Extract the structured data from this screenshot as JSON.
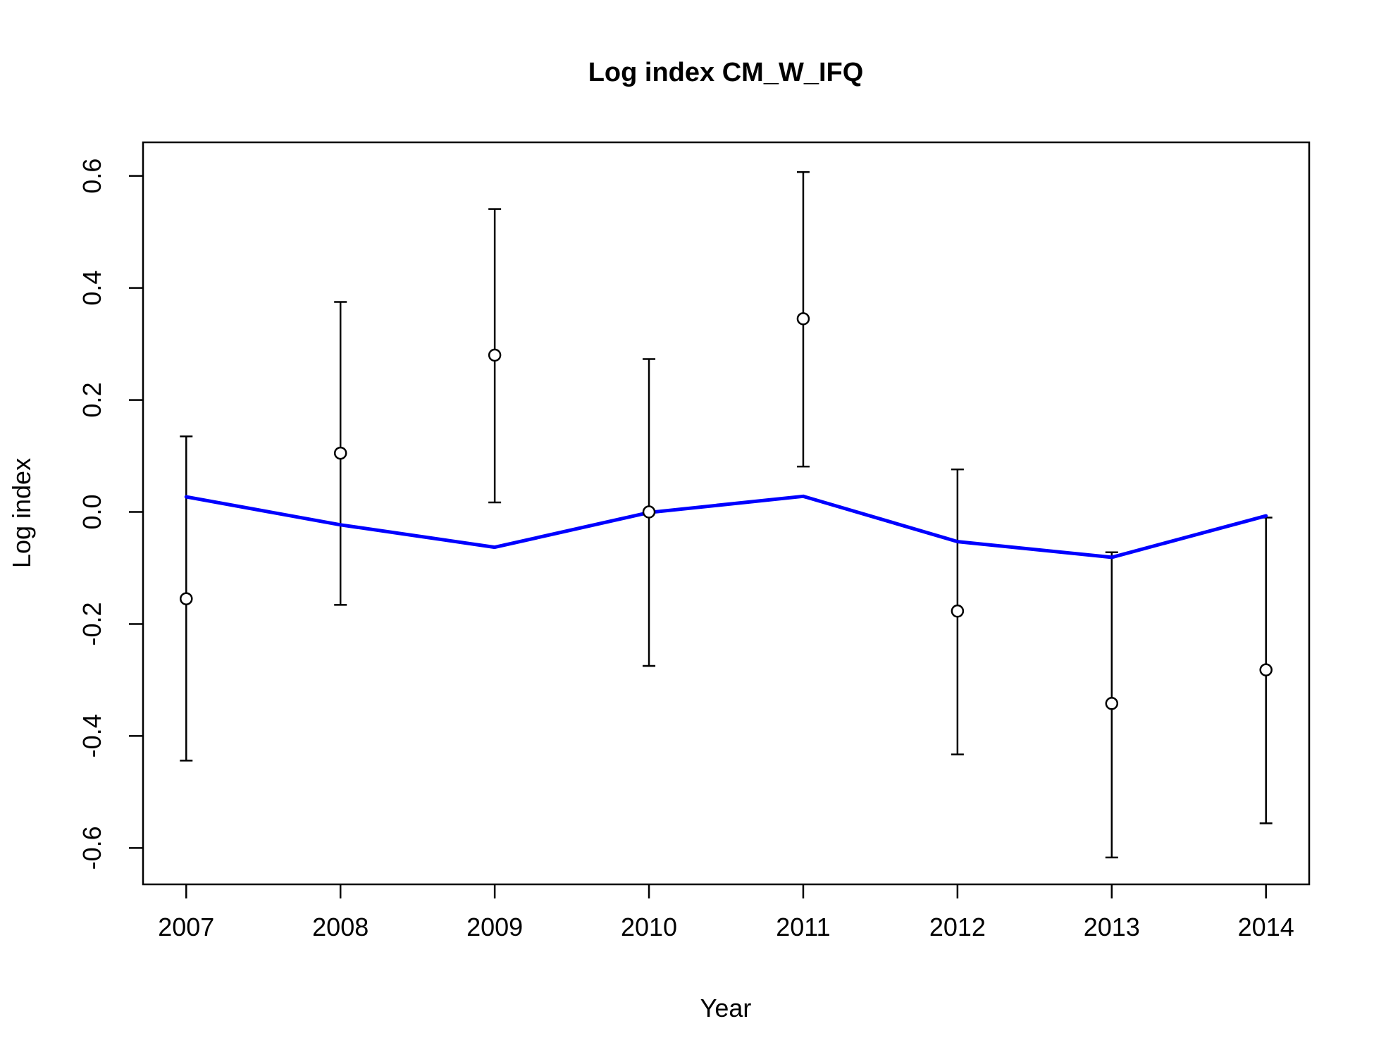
{
  "chart_data": {
    "type": "scatter",
    "title": "Log index CM_W_IFQ",
    "xlabel": "Year",
    "ylabel": "Log index",
    "x": [
      2007,
      2008,
      2009,
      2010,
      2011,
      2012,
      2013,
      2014
    ],
    "xticks": [
      "2007",
      "2008",
      "2009",
      "2010",
      "2011",
      "2012",
      "2013",
      "2014"
    ],
    "xlim": [
      2006.72,
      2014.28
    ],
    "ylim": [
      -0.665,
      0.66
    ],
    "yticks": [
      "-0.6",
      "-0.4",
      "-0.2",
      "0.0",
      "0.2",
      "0.4",
      "0.6"
    ],
    "yticks_values": [
      -0.6,
      -0.4,
      -0.2,
      0.0,
      0.2,
      0.4,
      0.6
    ],
    "grid": false,
    "series": [
      {
        "type": "points-with-errorbars",
        "values": [
          -0.155,
          0.105,
          0.28,
          0.0,
          0.345,
          -0.177,
          -0.342,
          -0.282
        ],
        "lower": [
          -0.444,
          -0.166,
          0.017,
          -0.275,
          0.081,
          -0.433,
          -0.617,
          -0.556
        ],
        "upper": [
          0.135,
          0.375,
          0.541,
          0.273,
          0.607,
          0.076,
          -0.072,
          -0.01
        ],
        "color": "#000000"
      },
      {
        "type": "line",
        "values": [
          0.027,
          -0.023,
          -0.063,
          -0.001,
          0.028,
          -0.053,
          -0.081,
          -0.007
        ],
        "color": "#0000ff"
      }
    ]
  }
}
